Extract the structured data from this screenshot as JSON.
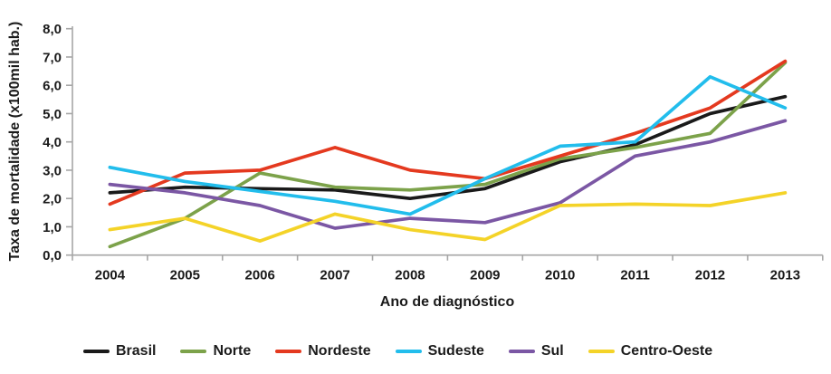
{
  "chart_data": {
    "type": "line",
    "title": "",
    "xlabel": "Ano de diagnóstico",
    "ylabel": "Taxa de mortalidade (x100mil hab.)",
    "x_categories": [
      "2004",
      "2005",
      "2006",
      "2007",
      "2008",
      "2009",
      "2010",
      "2011",
      "2012",
      "2013"
    ],
    "ylim": [
      0,
      8
    ],
    "y_tick_step": 1,
    "y_tick_labels": [
      "0,0",
      "1,0",
      "2,0",
      "3,0",
      "4,0",
      "5,0",
      "6,0",
      "7,0",
      "8,0"
    ],
    "grid": false,
    "legend_position": "bottom",
    "axis_color": "#a6a6a6",
    "text_color": "#1a1a1a",
    "series": [
      {
        "name": "Brasil",
        "color": "#1a1a1a",
        "values": [
          2.2,
          2.4,
          2.35,
          2.3,
          2.0,
          2.35,
          3.3,
          3.9,
          5.0,
          5.6
        ]
      },
      {
        "name": "Norte",
        "color": "#7ca24a",
        "values": [
          0.3,
          1.3,
          2.9,
          2.4,
          2.3,
          2.5,
          3.4,
          3.8,
          4.3,
          6.8
        ]
      },
      {
        "name": "Nordeste",
        "color": "#e4391f",
        "values": [
          1.8,
          2.9,
          3.0,
          3.8,
          3.0,
          2.7,
          3.5,
          4.3,
          5.2,
          6.85
        ]
      },
      {
        "name": "Sudeste",
        "color": "#22bdec",
        "values": [
          3.1,
          2.6,
          2.25,
          1.9,
          1.45,
          2.7,
          3.85,
          4.0,
          6.3,
          5.2
        ]
      },
      {
        "name": "Sul",
        "color": "#7b57a4",
        "values": [
          2.5,
          2.2,
          1.75,
          0.95,
          1.3,
          1.15,
          1.85,
          3.5,
          4.0,
          4.75
        ]
      },
      {
        "name": "Centro-Oeste",
        "color": "#f4d328",
        "values": [
          0.9,
          1.3,
          0.5,
          1.45,
          0.9,
          0.55,
          1.75,
          1.8,
          1.75,
          2.2
        ]
      }
    ]
  }
}
